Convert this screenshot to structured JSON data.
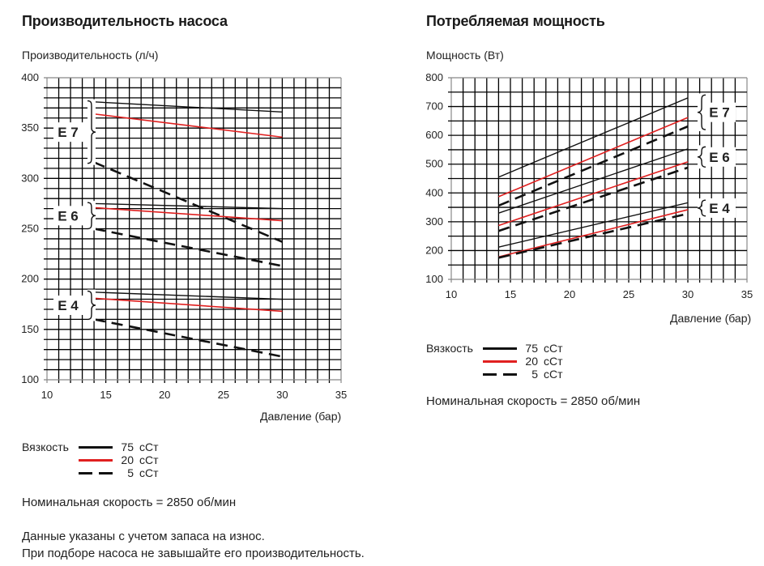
{
  "chart_data": [
    {
      "type": "line",
      "title": "Производительность насоса",
      "ylabel": "Производительность (л/ч)",
      "xlabel": "Давление (бар)",
      "xlim": [
        10,
        35
      ],
      "ylim": [
        100,
        400
      ],
      "xticks": [
        10,
        15,
        20,
        25,
        30,
        35
      ],
      "yticks": [
        100,
        150,
        200,
        250,
        300,
        350,
        400
      ],
      "grid": true,
      "grid_step_x": 1,
      "grid_step_y": 10,
      "groups": [
        {
          "name": "E7",
          "series": [
            {
              "viscosity": "75 сСт",
              "style": "solid-black",
              "x": [
                14,
                30
              ],
              "y": [
                376,
                366
              ]
            },
            {
              "viscosity": "20 сСт",
              "style": "solid-red",
              "x": [
                14,
                30
              ],
              "y": [
                364,
                341
              ]
            },
            {
              "viscosity": "5 сСт",
              "style": "dashed-black",
              "x": [
                14,
                30
              ],
              "y": [
                316,
                237
              ]
            }
          ]
        },
        {
          "name": "E6",
          "series": [
            {
              "viscosity": "75 сСт",
              "style": "solid-black",
              "x": [
                14,
                30
              ],
              "y": [
                275,
                270
              ]
            },
            {
              "viscosity": "20 сСт",
              "style": "solid-red",
              "x": [
                14,
                30
              ],
              "y": [
                271,
                258
              ]
            },
            {
              "viscosity": "5 сСт",
              "style": "dashed-black",
              "x": [
                14,
                30
              ],
              "y": [
                250,
                213
              ]
            }
          ]
        },
        {
          "name": "E4",
          "series": [
            {
              "viscosity": "75 сСт",
              "style": "solid-black",
              "x": [
                14,
                30
              ],
              "y": [
                187,
                180
              ]
            },
            {
              "viscosity": "20 сСт",
              "style": "solid-red",
              "x": [
                14,
                30
              ],
              "y": [
                181,
                168
              ]
            },
            {
              "viscosity": "5 сСт",
              "style": "dashed-black",
              "x": [
                14,
                30
              ],
              "y": [
                160,
                123
              ]
            }
          ]
        }
      ],
      "group_brace_y": {
        "E7": [
          315,
          377
        ],
        "E6": [
          250,
          276
        ],
        "E4": [
          160,
          188
        ]
      }
    },
    {
      "type": "line",
      "title": "Потребляемая мощность",
      "ylabel": "Мощность (Вт)",
      "xlabel": "Давление (бар)",
      "xlim": [
        10,
        35
      ],
      "ylim": [
        100,
        800
      ],
      "xticks": [
        10,
        15,
        20,
        25,
        30,
        35
      ],
      "yticks": [
        100,
        200,
        300,
        400,
        500,
        600,
        700,
        800
      ],
      "grid": true,
      "grid_step_x": 1,
      "grid_step_y": 50,
      "groups": [
        {
          "name": "E7",
          "series": [
            {
              "viscosity": "75 сСт",
              "style": "solid-black",
              "x": [
                14,
                30
              ],
              "y": [
                455,
                730
              ]
            },
            {
              "viscosity": "20 сСт",
              "style": "solid-red",
              "x": [
                14,
                30
              ],
              "y": [
                387,
                662
              ]
            },
            {
              "viscosity": "5 сСт",
              "style": "dashed-black",
              "x": [
                14,
                30
              ],
              "y": [
                356,
                631
              ]
            }
          ]
        },
        {
          "name": "E6",
          "series": [
            {
              "viscosity": "75 сСт",
              "style": "solid-black",
              "x": [
                14,
                30
              ],
              "y": [
                330,
                553
              ]
            },
            {
              "viscosity": "20 сСт",
              "style": "solid-red",
              "x": [
                14,
                30
              ],
              "y": [
                287,
                508
              ]
            },
            {
              "viscosity": "5 сСт",
              "style": "dashed-black",
              "x": [
                14,
                30
              ],
              "y": [
                268,
                488
              ]
            }
          ]
        },
        {
          "name": "E4",
          "series": [
            {
              "viscosity": "75 сСт",
              "style": "solid-black",
              "x": [
                14,
                30
              ],
              "y": [
                212,
                366
              ]
            },
            {
              "viscosity": "20 сСт",
              "style": "solid-red",
              "x": [
                14,
                30
              ],
              "y": [
                178,
                342
              ]
            },
            {
              "viscosity": "5 сСт",
              "style": "dashed-black",
              "x": [
                14,
                30
              ],
              "y": [
                175,
                328
              ]
            }
          ]
        }
      ],
      "group_brace_y": {
        "E7": [
          620,
          740
        ],
        "E6": [
          490,
          560
        ],
        "E4": [
          320,
          375
        ]
      }
    }
  ],
  "colors": {
    "black": "#111111",
    "red": "#e02020",
    "grid": "#000000",
    "frame": "#888888"
  },
  "legend": {
    "label": "Вязкость",
    "items": [
      {
        "value": "75",
        "unit": "сСт",
        "style": "solid-black"
      },
      {
        "value": "20",
        "unit": "сСт",
        "style": "solid-red"
      },
      {
        "value": "5",
        "unit": "сСт",
        "style": "dashed-black"
      }
    ]
  },
  "notes": {
    "nominal_speed": "Номинальная скорость = 2850 об/мин",
    "disclaimer_1": "Данные указаны с учетом запаса на износ.",
    "disclaimer_2": "При подборе насоса не завышайте его производительность."
  }
}
